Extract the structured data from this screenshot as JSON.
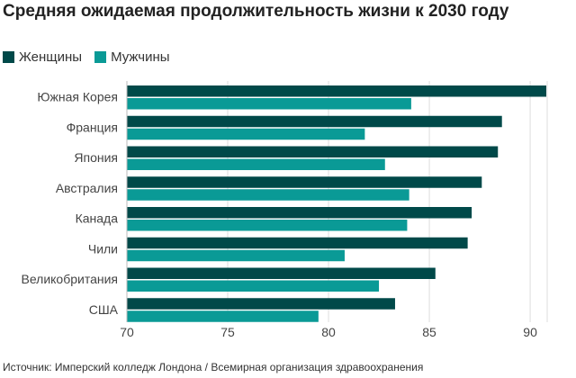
{
  "chart_data": {
    "type": "bar",
    "orientation": "horizontal",
    "title": "Средняя ожидаемая продолжительность жизни к 2030 году",
    "categories": [
      "Южная Корея",
      "Франция",
      "Япония",
      "Австралия",
      "Канада",
      "Чили",
      "Великобритания",
      "США"
    ],
    "series": [
      {
        "name": "Женщины",
        "color": "#004949",
        "values": [
          90.8,
          88.6,
          88.4,
          87.6,
          87.1,
          86.9,
          85.3,
          83.3
        ]
      },
      {
        "name": "Мужчины",
        "color": "#0a9a96",
        "values": [
          84.1,
          81.8,
          82.8,
          84.0,
          83.9,
          80.8,
          82.5,
          79.5
        ]
      }
    ],
    "xlim": [
      70,
      90.8
    ],
    "xticks": [
      70,
      75,
      80,
      85,
      90
    ],
    "grid": true,
    "legend_position": "top-left"
  },
  "source": "Источник: Имперский колледж Лондона / Всемирная организация здравоохранения"
}
